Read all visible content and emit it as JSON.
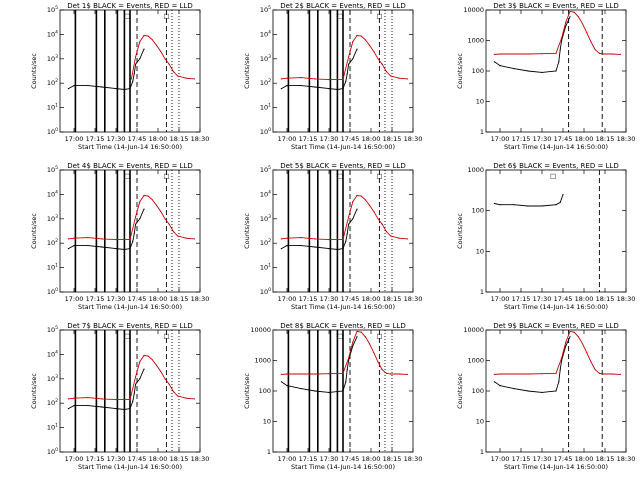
{
  "chart_data": [
    {
      "type": "line",
      "title": "Det 1$ BLACK = Events, RED = LLD",
      "xlabel": "Start Time (14-Jun-14 16:50:00)",
      "ylabel": "Counts/sec",
      "yscale": "log",
      "ylim": [
        1,
        100000
      ],
      "yticks": [
        1,
        10,
        100,
        1000,
        10000,
        100000
      ],
      "ytick_labels": [
        "10^0",
        "10^1",
        "10^2",
        "10^3",
        "10^4",
        "10^5"
      ],
      "xlim": [
        "16:50",
        "18:30"
      ],
      "xticks": [
        "17:00",
        "17:15",
        "17:30",
        "17:45",
        "18:00",
        "18:15",
        "18:30"
      ],
      "series": [
        {
          "color": "#000000",
          "x": [
            "16:56",
            "17:00",
            "17:10",
            "17:20",
            "17:30",
            "17:36",
            "17:40",
            "17:42",
            "17:43",
            "17:44",
            "17:47",
            "17:50"
          ],
          "y": [
            60,
            80,
            80,
            70,
            60,
            55,
            60,
            120,
            240,
            600,
            1000,
            2500
          ]
        },
        {
          "color": "#cc0000",
          "x": [
            "17:41",
            "17:44",
            "17:47",
            "17:50",
            "17:53",
            "17:56",
            "17:59",
            "18:02",
            "18:05",
            "18:08",
            "18:11",
            "18:14",
            "18:20",
            "18:26"
          ],
          "y": [
            150,
            1200,
            5000,
            9000,
            8500,
            6000,
            3500,
            2000,
            1000,
            600,
            300,
            200,
            160,
            150
          ]
        }
      ],
      "vlines_solid": [
        "17:01",
        "17:16",
        "17:22",
        "17:31",
        "17:36",
        "17:40"
      ],
      "vlines_dashed": [
        "17:45",
        "18:06"
      ],
      "vlines_dotted": [
        "18:10",
        "18:15"
      ],
      "flags": [
        "□",
        "□"
      ]
    },
    {
      "type": "line",
      "title": "Det 2$ BLACK = Events, RED = LLD",
      "xlabel": "Start Time (14-Jun-14 16:50:00)",
      "ylabel": "Counts/sec",
      "yscale": "log",
      "ylim": [
        1,
        100000
      ],
      "yticks": [
        1,
        10,
        100,
        1000,
        10000,
        100000
      ],
      "ytick_labels": [
        "10^0",
        "10^1",
        "10^2",
        "10^3",
        "10^4",
        "10^5"
      ],
      "xlim": [
        "16:50",
        "18:30"
      ],
      "xticks": [
        "17:00",
        "17:15",
        "17:30",
        "17:45",
        "18:00",
        "18:15",
        "18:30"
      ],
      "series": [
        {
          "color": "#000000",
          "x": [
            "16:56",
            "17:00",
            "17:10",
            "17:20",
            "17:30",
            "17:36",
            "17:40",
            "17:42",
            "17:43",
            "17:44",
            "17:47",
            "17:50"
          ],
          "y": [
            60,
            80,
            80,
            70,
            60,
            55,
            60,
            120,
            240,
            600,
            1000,
            2500
          ]
        },
        {
          "color": "#cc0000",
          "x": [
            "16:56",
            "17:00",
            "17:10",
            "17:20",
            "17:30",
            "17:40",
            "17:44",
            "17:47",
            "17:50",
            "17:53",
            "17:56",
            "17:59",
            "18:02",
            "18:05",
            "18:08",
            "18:11",
            "18:14",
            "18:20",
            "18:26"
          ],
          "y": [
            150,
            160,
            170,
            150,
            140,
            140,
            1200,
            5000,
            9000,
            8500,
            6000,
            3500,
            2000,
            1000,
            600,
            300,
            200,
            160,
            150
          ]
        }
      ],
      "vlines_solid": [
        "17:01",
        "17:16",
        "17:22",
        "17:31",
        "17:36",
        "17:40"
      ],
      "vlines_dashed": [
        "17:45",
        "18:06"
      ],
      "vlines_dotted": [
        "18:10",
        "18:15"
      ],
      "flags": [
        "□",
        "□"
      ]
    },
    {
      "type": "line",
      "title": "Det 3$ BLACK = Events, RED = LLD",
      "xlabel": "Start Time (14-Jun-14 16:50:00)",
      "ylabel": "Counts/sec",
      "yscale": "log",
      "ylim": [
        1,
        10000
      ],
      "yticks": [
        1,
        10,
        100,
        1000,
        10000
      ],
      "ytick_labels": [
        "1",
        "10",
        "100",
        "1000",
        "10000"
      ],
      "xlim": [
        "16:50",
        "18:30"
      ],
      "xticks": [
        "17:00",
        "17:15",
        "17:30",
        "17:45",
        "18:00",
        "18:15",
        "18:30"
      ],
      "series": [
        {
          "color": "#000000",
          "x": [
            "16:56",
            "17:00",
            "17:10",
            "17:20",
            "17:30",
            "17:40",
            "17:42",
            "17:43",
            "17:44",
            "17:47",
            "17:50"
          ],
          "y": [
            200,
            150,
            120,
            100,
            90,
            100,
            200,
            500,
            1000,
            3000,
            6000
          ]
        },
        {
          "color": "#cc0000",
          "x": [
            "16:56",
            "17:00",
            "17:10",
            "17:20",
            "17:30",
            "17:40",
            "17:44",
            "17:47",
            "17:50",
            "17:53",
            "17:56",
            "17:59",
            "18:02",
            "18:05",
            "18:08",
            "18:11",
            "18:14",
            "18:20",
            "18:26"
          ],
          "y": [
            350,
            360,
            360,
            360,
            370,
            380,
            1200,
            4000,
            9000,
            8500,
            6000,
            3500,
            1800,
            900,
            500,
            380,
            360,
            360,
            350
          ]
        }
      ],
      "vlines_solid": [],
      "vlines_dashed": [
        "17:49",
        "18:13"
      ],
      "vlines_dotted": [],
      "flags": []
    },
    {
      "type": "line",
      "title": "Det 4$ BLACK = Events, RED = LLD",
      "xlabel": "Start Time (14-Jun-14 16:50:00)",
      "ylabel": "Counts/sec",
      "yscale": "log",
      "ylim": [
        1,
        100000
      ],
      "yticks": [
        1,
        10,
        100,
        1000,
        10000,
        100000
      ],
      "ytick_labels": [
        "10^0",
        "10^1",
        "10^2",
        "10^3",
        "10^4",
        "10^5"
      ],
      "xlim": [
        "16:50",
        "18:30"
      ],
      "xticks": [
        "17:00",
        "17:15",
        "17:30",
        "17:45",
        "18:00",
        "18:15",
        "18:30"
      ],
      "series": [
        {
          "color": "#000000",
          "x": [
            "16:56",
            "17:00",
            "17:10",
            "17:20",
            "17:30",
            "17:36",
            "17:40",
            "17:42",
            "17:43",
            "17:44",
            "17:47",
            "17:50"
          ],
          "y": [
            60,
            80,
            80,
            70,
            60,
            55,
            60,
            120,
            240,
            600,
            1000,
            2500
          ]
        },
        {
          "color": "#cc0000",
          "x": [
            "16:56",
            "17:00",
            "17:10",
            "17:20",
            "17:30",
            "17:40",
            "17:44",
            "17:47",
            "17:50",
            "17:53",
            "17:56",
            "17:59",
            "18:02",
            "18:05",
            "18:08",
            "18:11",
            "18:14",
            "18:20",
            "18:26"
          ],
          "y": [
            150,
            160,
            170,
            150,
            140,
            140,
            1200,
            5000,
            9000,
            8500,
            6000,
            3500,
            2000,
            1000,
            600,
            300,
            200,
            160,
            150
          ]
        }
      ],
      "vlines_solid": [
        "17:01",
        "17:16",
        "17:22",
        "17:31",
        "17:36",
        "17:40"
      ],
      "vlines_dashed": [
        "17:45",
        "18:06"
      ],
      "vlines_dotted": [
        "18:10",
        "18:15"
      ],
      "flags": [
        "□",
        "□"
      ]
    },
    {
      "type": "line",
      "title": "Det 5$ BLACK = Events, RED = LLD",
      "xlabel": "Start Time (14-Jun-14 16:50:00)",
      "ylabel": "Counts/sec",
      "yscale": "log",
      "ylim": [
        1,
        100000
      ],
      "yticks": [
        1,
        10,
        100,
        1000,
        10000,
        100000
      ],
      "ytick_labels": [
        "10^0",
        "10^1",
        "10^2",
        "10^3",
        "10^4",
        "10^5"
      ],
      "xlim": [
        "16:50",
        "18:30"
      ],
      "xticks": [
        "17:00",
        "17:15",
        "17:30",
        "17:45",
        "18:00",
        "18:15",
        "18:30"
      ],
      "series": [
        {
          "color": "#000000",
          "x": [
            "16:56",
            "17:00",
            "17:10",
            "17:20",
            "17:30",
            "17:36",
            "17:40",
            "17:42",
            "17:43",
            "17:44",
            "17:47",
            "17:50"
          ],
          "y": [
            60,
            80,
            80,
            70,
            60,
            55,
            60,
            120,
            240,
            600,
            1000,
            2500
          ]
        },
        {
          "color": "#cc0000",
          "x": [
            "16:56",
            "17:00",
            "17:10",
            "17:20",
            "17:30",
            "17:40",
            "17:44",
            "17:47",
            "17:50",
            "17:53",
            "17:56",
            "17:59",
            "18:02",
            "18:05",
            "18:08",
            "18:11",
            "18:14",
            "18:20",
            "18:26"
          ],
          "y": [
            150,
            160,
            170,
            150,
            140,
            140,
            1200,
            5000,
            9000,
            8500,
            6000,
            3500,
            2000,
            1000,
            600,
            300,
            200,
            160,
            150
          ]
        }
      ],
      "vlines_solid": [
        "17:01",
        "17:16",
        "17:22",
        "17:31",
        "17:36",
        "17:40"
      ],
      "vlines_dashed": [
        "17:45",
        "18:06"
      ],
      "vlines_dotted": [
        "18:10",
        "18:15"
      ],
      "flags": [
        "□",
        "□"
      ]
    },
    {
      "type": "line",
      "title": "Det 6$ BLACK = Events, RED = LLD",
      "xlabel": "Start Time (14-Jun-14 16:50:00)",
      "ylabel": "Counts/sec",
      "yscale": "log",
      "ylim": [
        1,
        1000
      ],
      "yticks": [
        1,
        10,
        100,
        1000
      ],
      "ytick_labels": [
        "1",
        "10",
        "100",
        "1000"
      ],
      "xlim": [
        "16:50",
        "18:30"
      ],
      "xticks": [
        "17:00",
        "17:15",
        "17:30",
        "17:45",
        "18:00",
        "18:15",
        "18:30"
      ],
      "series": [
        {
          "color": "#000000",
          "x": [
            "16:56",
            "17:00",
            "17:10",
            "17:20",
            "17:30",
            "17:40",
            "17:43",
            "17:45"
          ],
          "y": [
            150,
            140,
            140,
            130,
            130,
            140,
            160,
            250
          ]
        }
      ],
      "vlines_solid": [],
      "vlines_dashed": [
        "18:11"
      ],
      "vlines_dotted": [],
      "flags": [
        "□"
      ]
    },
    {
      "type": "line",
      "title": "Det 7$ BLACK = Events, RED = LLD",
      "xlabel": "Start Time (14-Jun-14 16:50:00)",
      "ylabel": "Counts/sec",
      "yscale": "log",
      "ylim": [
        1,
        100000
      ],
      "yticks": [
        1,
        10,
        100,
        1000,
        10000,
        100000
      ],
      "ytick_labels": [
        "10^0",
        "10^1",
        "10^2",
        "10^3",
        "10^4",
        "10^5"
      ],
      "xlim": [
        "16:50",
        "18:30"
      ],
      "xticks": [
        "17:00",
        "17:15",
        "17:30",
        "17:45",
        "18:00",
        "18:15",
        "18:30"
      ],
      "series": [
        {
          "color": "#000000",
          "x": [
            "16:56",
            "17:00",
            "17:10",
            "17:20",
            "17:30",
            "17:36",
            "17:40",
            "17:42",
            "17:43",
            "17:44",
            "17:47",
            "17:50"
          ],
          "y": [
            60,
            80,
            80,
            70,
            60,
            55,
            60,
            120,
            240,
            600,
            1000,
            2500
          ]
        },
        {
          "color": "#cc0000",
          "x": [
            "16:56",
            "17:00",
            "17:10",
            "17:20",
            "17:30",
            "17:40",
            "17:44",
            "17:47",
            "17:50",
            "17:53",
            "17:56",
            "17:59",
            "18:02",
            "18:05",
            "18:08",
            "18:11",
            "18:14",
            "18:20",
            "18:26"
          ],
          "y": [
            150,
            160,
            170,
            150,
            140,
            140,
            1200,
            5000,
            9000,
            8500,
            6000,
            3500,
            2000,
            1000,
            600,
            300,
            200,
            160,
            150
          ]
        }
      ],
      "vlines_solid": [
        "17:01",
        "17:16",
        "17:22",
        "17:31",
        "17:36",
        "17:40"
      ],
      "vlines_dashed": [
        "17:45",
        "18:06"
      ],
      "vlines_dotted": [
        "18:10",
        "18:15"
      ],
      "flags": [
        "□",
        "□"
      ]
    },
    {
      "type": "line",
      "title": "Det 8$ BLACK = Events, RED = LLD",
      "xlabel": "Start Time (14-Jun-14 16:50:00)",
      "ylabel": "Counts/sec",
      "yscale": "log",
      "ylim": [
        1,
        10000
      ],
      "yticks": [
        1,
        10,
        100,
        1000,
        10000
      ],
      "ytick_labels": [
        "1",
        "10",
        "100",
        "1000",
        "10000"
      ],
      "xlim": [
        "16:50",
        "18:30"
      ],
      "xticks": [
        "17:00",
        "17:15",
        "17:30",
        "17:45",
        "18:00",
        "18:15",
        "18:30"
      ],
      "series": [
        {
          "color": "#000000",
          "x": [
            "16:56",
            "17:00",
            "17:10",
            "17:20",
            "17:30",
            "17:40",
            "17:42",
            "17:43",
            "17:44",
            "17:47",
            "17:50"
          ],
          "y": [
            200,
            150,
            120,
            100,
            90,
            100,
            200,
            500,
            1000,
            3000,
            6000
          ]
        },
        {
          "color": "#cc0000",
          "x": [
            "16:56",
            "17:00",
            "17:10",
            "17:20",
            "17:30",
            "17:40",
            "17:44",
            "17:47",
            "17:50",
            "17:53",
            "17:56",
            "17:59",
            "18:02",
            "18:05",
            "18:08",
            "18:11",
            "18:14",
            "18:20",
            "18:26"
          ],
          "y": [
            350,
            360,
            360,
            360,
            370,
            380,
            1200,
            4000,
            9000,
            8500,
            6000,
            3500,
            1800,
            900,
            500,
            380,
            360,
            360,
            350
          ]
        }
      ],
      "vlines_solid": [
        "17:01",
        "17:16",
        "17:22",
        "17:31",
        "17:36",
        "17:40"
      ],
      "vlines_dashed": [
        "17:45",
        "18:06"
      ],
      "vlines_dotted": [
        "18:10",
        "18:15"
      ],
      "flags": [
        "□",
        "□"
      ]
    },
    {
      "type": "line",
      "title": "Det 9$ BLACK = Events, RED = LLD",
      "xlabel": "Start Time (14-Jun-14 16:50:00)",
      "ylabel": "Counts/sec",
      "yscale": "log",
      "ylim": [
        1,
        10000
      ],
      "yticks": [
        1,
        10,
        100,
        1000,
        10000
      ],
      "ytick_labels": [
        "1",
        "10",
        "100",
        "1000",
        "10000"
      ],
      "xlim": [
        "16:50",
        "18:30"
      ],
      "xticks": [
        "17:00",
        "17:15",
        "17:30",
        "17:45",
        "18:00",
        "18:15",
        "18:30"
      ],
      "series": [
        {
          "color": "#000000",
          "x": [
            "16:56",
            "17:00",
            "17:10",
            "17:20",
            "17:30",
            "17:40",
            "17:42",
            "17:43",
            "17:44",
            "17:47",
            "17:50"
          ],
          "y": [
            200,
            150,
            120,
            100,
            90,
            100,
            200,
            500,
            1000,
            3000,
            6000
          ]
        },
        {
          "color": "#cc0000",
          "x": [
            "16:56",
            "17:00",
            "17:10",
            "17:20",
            "17:30",
            "17:40",
            "17:44",
            "17:47",
            "17:50",
            "17:53",
            "17:56",
            "17:59",
            "18:02",
            "18:05",
            "18:08",
            "18:11",
            "18:14",
            "18:20",
            "18:26"
          ],
          "y": [
            350,
            360,
            360,
            360,
            370,
            380,
            1200,
            4000,
            9000,
            8500,
            6000,
            3500,
            1800,
            900,
            500,
            380,
            360,
            360,
            350
          ]
        }
      ],
      "vlines_solid": [],
      "vlines_dashed": [
        "17:49",
        "18:13"
      ],
      "vlines_dotted": [],
      "flags": []
    }
  ]
}
